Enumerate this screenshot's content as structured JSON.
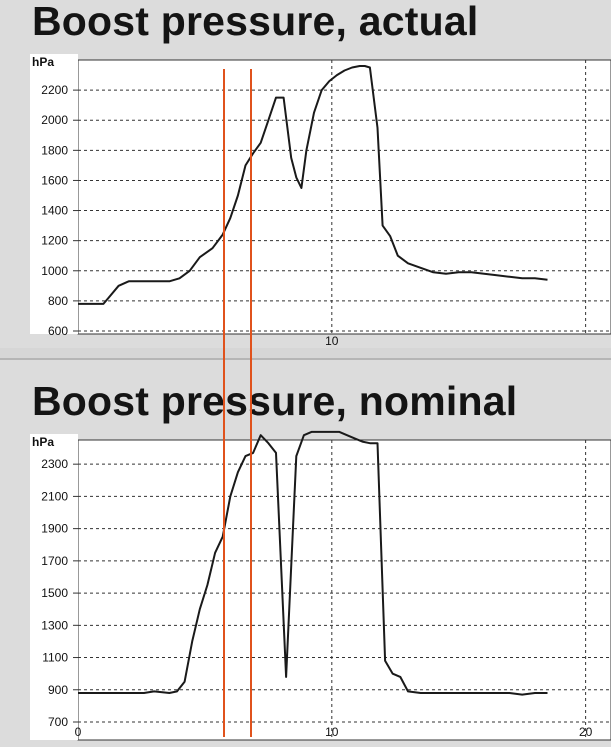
{
  "chart_data": [
    {
      "type": "line",
      "title": "Boost pressure, actual",
      "ylabel": "hPa",
      "xlabel": "",
      "xlim": [
        0,
        21
      ],
      "ylim": [
        600,
        2400
      ],
      "yticks": [
        600,
        800,
        1000,
        1200,
        1400,
        1600,
        1800,
        2000,
        2200
      ],
      "xticks": [
        10
      ],
      "grid": true,
      "series": [
        {
          "color": "#1a1a1a",
          "x": [
            0,
            1.0,
            1.2,
            1.6,
            2.0,
            2.5,
            3.0,
            3.6,
            4.0,
            4.4,
            4.8,
            5.3,
            5.7,
            6.0,
            6.3,
            6.6,
            6.9,
            7.2,
            7.5,
            7.8,
            8.1,
            8.4,
            8.6,
            8.8,
            9.0,
            9.3,
            9.6,
            9.9,
            10.2,
            10.5,
            10.8,
            11.1,
            11.3,
            11.5,
            11.8,
            12.0,
            12.3,
            12.6,
            13.0,
            13.5,
            14.0,
            14.5,
            15.0,
            15.5,
            16.0,
            16.5,
            17.0,
            17.5,
            18.0,
            18.5
          ],
          "y": [
            780,
            780,
            820,
            900,
            930,
            930,
            930,
            930,
            950,
            1000,
            1090,
            1150,
            1240,
            1350,
            1500,
            1700,
            1780,
            1850,
            2000,
            2150,
            2150,
            1750,
            1620,
            1550,
            1800,
            2050,
            2200,
            2260,
            2300,
            2330,
            2350,
            2360,
            2360,
            2350,
            1950,
            1300,
            1230,
            1100,
            1050,
            1020,
            990,
            980,
            990,
            990,
            980,
            970,
            960,
            950,
            950,
            940
          ]
        }
      ]
    },
    {
      "type": "line",
      "title": "Boost pressure, nominal",
      "ylabel": "hPa",
      "xlabel": "",
      "xlim": [
        0,
        21
      ],
      "ylim": [
        700,
        2450
      ],
      "yticks": [
        700,
        900,
        1100,
        1300,
        1500,
        1700,
        1900,
        2100,
        2300
      ],
      "xticks": [
        0,
        10,
        20
      ],
      "grid": true,
      "series": [
        {
          "color": "#1a1a1a",
          "x": [
            0,
            1.0,
            2.0,
            2.6,
            3.0,
            3.6,
            3.9,
            4.2,
            4.5,
            4.8,
            5.1,
            5.4,
            5.7,
            6.0,
            6.3,
            6.6,
            6.9,
            7.2,
            7.5,
            7.8,
            8.2,
            8.6,
            8.9,
            9.2,
            9.6,
            10.0,
            10.3,
            10.6,
            10.9,
            11.2,
            11.5,
            11.8,
            12.1,
            12.4,
            12.7,
            13.0,
            13.5,
            14.0,
            15.0,
            16.0,
            17.0,
            17.5,
            18.0,
            18.5
          ],
          "y": [
            880,
            880,
            880,
            880,
            890,
            880,
            890,
            950,
            1200,
            1400,
            1550,
            1750,
            1850,
            2100,
            2250,
            2350,
            2370,
            2480,
            2430,
            2370,
            980,
            2350,
            2480,
            2500,
            2500,
            2500,
            2500,
            2480,
            2460,
            2440,
            2430,
            2430,
            1080,
            1000,
            980,
            890,
            880,
            880,
            880,
            880,
            880,
            870,
            880,
            880
          ]
        }
      ]
    }
  ]
}
